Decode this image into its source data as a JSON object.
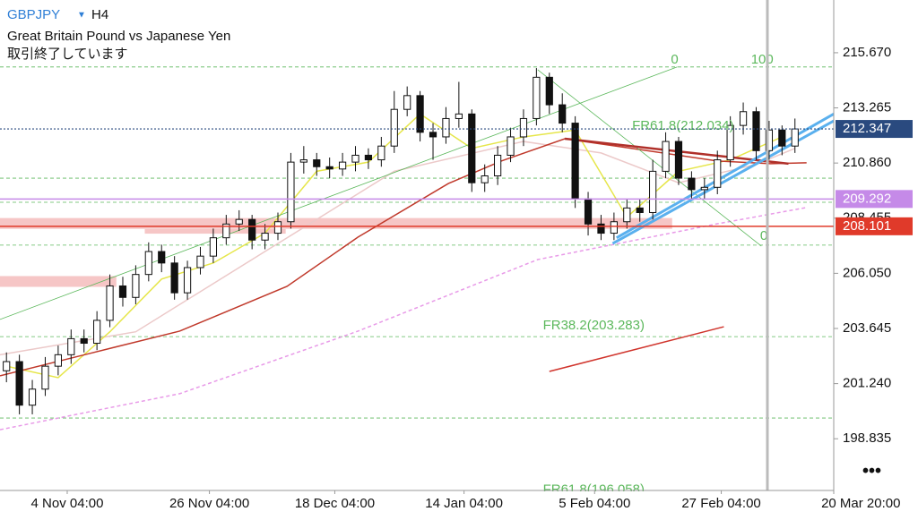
{
  "header": {
    "symbol": "GBPJPY",
    "timeframe": "H4",
    "name": "Great Britain Pound vs Japanese Yen",
    "status": "取引終了しています"
  },
  "chart_data": {
    "type": "candlestick",
    "xlim": [
      -0.5,
      64
    ],
    "ylim": [
      196.58,
      217.97
    ],
    "xticks": [
      {
        "value": 4.7,
        "label": "4 Nov 04:00"
      },
      {
        "value": 15.7,
        "label": "26 Nov 04:00"
      },
      {
        "value": 25.4,
        "label": "18 Dec 04:00"
      },
      {
        "value": 35.4,
        "label": "14 Jan 04:00"
      },
      {
        "value": 45.5,
        "label": "5 Feb 04:00"
      },
      {
        "value": 55.3,
        "label": "27 Feb 04:00"
      },
      {
        "value": 66.1,
        "label": "20 Mar 20:00"
      }
    ],
    "yticks": [
      {
        "value": 215.67,
        "label": "215.670"
      },
      213.265,
      {
        "value": 210.86,
        "label": "210.860"
      },
      208.455,
      {
        "value": 206.05,
        "label": "206.050"
      },
      203.645,
      {
        "value": 201.24,
        "label": "201.240"
      },
      198.835
    ],
    "open": [
      201.8,
      202.2,
      200.3,
      201.0,
      202.0,
      202.5,
      203.2,
      203.0,
      204.0,
      205.5,
      205.0,
      206.0,
      207.0,
      206.5,
      205.2,
      206.3,
      206.8,
      207.6,
      208.2,
      208.4,
      207.5,
      207.8,
      208.3,
      210.9,
      211.0,
      210.7,
      210.6,
      210.9,
      211.2,
      211.0,
      211.6,
      213.2,
      213.8,
      212.2,
      212.0,
      212.8,
      213.0,
      210.0,
      210.3,
      211.2,
      212.0,
      212.8,
      214.6,
      213.4,
      212.6,
      209.3,
      208.2,
      207.8,
      208.3,
      208.9,
      208.7,
      210.5,
      211.8,
      210.2,
      209.7,
      209.8,
      211.0,
      212.5,
      213.1,
      211.4,
      212.3,
      211.6
    ],
    "high": [
      202.6,
      202.5,
      201.4,
      202.4,
      202.9,
      203.6,
      203.6,
      204.4,
      206.0,
      205.9,
      206.4,
      207.4,
      207.3,
      206.8,
      206.6,
      207.2,
      208.0,
      208.6,
      208.8,
      208.6,
      208.2,
      208.7,
      211.3,
      211.6,
      211.3,
      211.1,
      211.3,
      211.6,
      211.5,
      212.0,
      214.0,
      214.2,
      214.0,
      212.6,
      213.3,
      214.4,
      213.2,
      210.8,
      211.6,
      212.4,
      213.2,
      215.0,
      214.8,
      213.9,
      212.9,
      209.6,
      208.6,
      208.7,
      209.3,
      209.3,
      211.0,
      212.2,
      212.0,
      210.5,
      210.2,
      211.4,
      212.9,
      213.5,
      213.3,
      212.7,
      212.5,
      212.8
    ],
    "low": [
      201.3,
      199.9,
      199.9,
      200.7,
      201.6,
      202.1,
      202.6,
      202.7,
      203.7,
      204.6,
      204.7,
      205.7,
      206.1,
      204.9,
      204.9,
      206.0,
      206.5,
      207.3,
      207.9,
      207.1,
      207.1,
      207.5,
      208.0,
      210.4,
      210.3,
      210.2,
      210.3,
      210.5,
      210.6,
      210.7,
      211.3,
      212.9,
      211.8,
      211.0,
      211.7,
      212.4,
      209.6,
      209.6,
      209.9,
      210.9,
      211.6,
      212.5,
      213.0,
      212.2,
      208.9,
      207.7,
      207.5,
      207.5,
      208.0,
      208.3,
      208.4,
      210.2,
      209.9,
      209.3,
      209.3,
      209.5,
      210.7,
      212.1,
      211.0,
      211.0,
      211.2,
      211.3
    ],
    "close": [
      202.2,
      200.3,
      201.0,
      202.0,
      202.5,
      203.2,
      203.0,
      204.0,
      205.5,
      205.0,
      206.0,
      207.0,
      206.5,
      205.2,
      206.3,
      206.8,
      207.6,
      208.2,
      208.4,
      207.5,
      207.8,
      208.3,
      210.9,
      211.0,
      210.7,
      210.6,
      210.9,
      211.2,
      211.0,
      211.6,
      213.2,
      213.8,
      212.2,
      212.0,
      212.8,
      213.0,
      210.0,
      210.3,
      211.2,
      212.0,
      212.8,
      214.6,
      213.4,
      212.6,
      209.3,
      208.2,
      207.8,
      208.3,
      208.9,
      208.7,
      210.5,
      211.8,
      210.2,
      209.7,
      209.8,
      211.0,
      212.5,
      213.1,
      211.4,
      212.3,
      211.6,
      212.347
    ],
    "series": [
      {
        "color": "#ecc9c9",
        "x": [
          -0.5,
          10,
          20,
          30,
          40,
          46,
          52,
          58,
          61
        ],
        "values": [
          202.5,
          203.5,
          207.0,
          210.5,
          211.8,
          211.3,
          210.0,
          210.8,
          211.5
        ]
      },
      {
        "color": "#e6e64a",
        "x": [
          0,
          4,
          8,
          12,
          16,
          20,
          24,
          28,
          32,
          36,
          40,
          44,
          48,
          52,
          56,
          60
        ],
        "values": [
          202.0,
          201.5,
          203.5,
          205.8,
          206.5,
          207.8,
          210.5,
          210.9,
          213.0,
          211.5,
          212.0,
          212.3,
          208.5,
          210.5,
          211.0,
          212.0
        ]
      },
      {
        "color": "#c0392b",
        "x": [
          -0.5,
          6.4,
          13.4,
          21.7,
          27.2,
          34.2,
          38.3,
          43.2,
          48.0,
          55.0,
          59.1,
          61.9
        ],
        "values": [
          201.58,
          202.55,
          203.53,
          205.48,
          207.63,
          209.97,
          210.95,
          211.92,
          211.53,
          210.95,
          210.83,
          210.87
        ]
      },
      {
        "color": "#e89ae8",
        "dashed": true,
        "x": [
          -0.5,
          13.4,
          27.2,
          41.1,
          55.0,
          61.9
        ],
        "values": [
          199.23,
          200.8,
          203.53,
          206.65,
          208.21,
          208.92
        ]
      }
    ],
    "price_lines": [
      {
        "value": 212.347,
        "label": "212.347",
        "color": "#2a4a7f",
        "dashed": true
      },
      {
        "value": 209.292,
        "label": "209.292",
        "color": "#c58ae8"
      },
      {
        "value": 208.101,
        "label": "208.101",
        "color": "#e03a2a"
      }
    ],
    "fib_levels": [
      215.05,
      210.2,
      209.15,
      207.28,
      203.29,
      199.74
    ],
    "fib_color": "#5cb85c",
    "zones": [
      {
        "x": [
          -0.5,
          8.5
        ],
        "y": [
          205.93,
          205.46
        ]
      },
      {
        "x": [
          10.7,
          21.6
        ],
        "y": [
          207.98,
          207.78
        ]
      },
      {
        "x": [
          -0.5,
          51.5
        ],
        "y": [
          208.46,
          207.99
        ]
      }
    ],
    "zone_color": "#f4b8b8",
    "trend_lines": [
      {
        "color": "#5cb85c",
        "width": 0.8,
        "x": [
          -0.5,
          51.9
        ],
        "y": [
          204.04,
          215.05
        ]
      },
      {
        "color": "#5cb85c",
        "width": 0.8,
        "x": [
          41.1,
          58.4
        ],
        "y": [
          214.93,
          207.24
        ]
      },
      {
        "color": "#d0342c",
        "width": 1.5,
        "x": [
          42.0,
          55.5
        ],
        "y": [
          201.77,
          203.72
        ]
      },
      {
        "color": "#b0302a",
        "width": 2.5,
        "x": [
          43.2,
          60.5
        ],
        "y": [
          211.92,
          210.83
        ]
      },
      {
        "color": "#5ab0ee",
        "width": 3,
        "x": [
          46.9,
          64
        ],
        "y": [
          207.35,
          212.7
        ]
      },
      {
        "color": "#5ab0ee",
        "width": 3,
        "x": [
          47.2,
          64
        ],
        "y": [
          207.6,
          213.0
        ]
      }
    ],
    "annotations": [
      {
        "text": "0",
        "x": 51.4,
        "y": 215.35
      },
      {
        "text": "100",
        "x": 57.6,
        "y": 215.35
      },
      {
        "text": "FR61.8(212.034)",
        "x": 48.4,
        "y": 212.47
      },
      {
        "text": "0",
        "x": 58.3,
        "y": 207.67
      },
      {
        "text": "FR38.2(203.283)",
        "x": 41.5,
        "y": 203.76
      },
      {
        "text": "FR61.8(196.058)",
        "x": 41.5,
        "y": 196.6
      }
    ]
  }
}
